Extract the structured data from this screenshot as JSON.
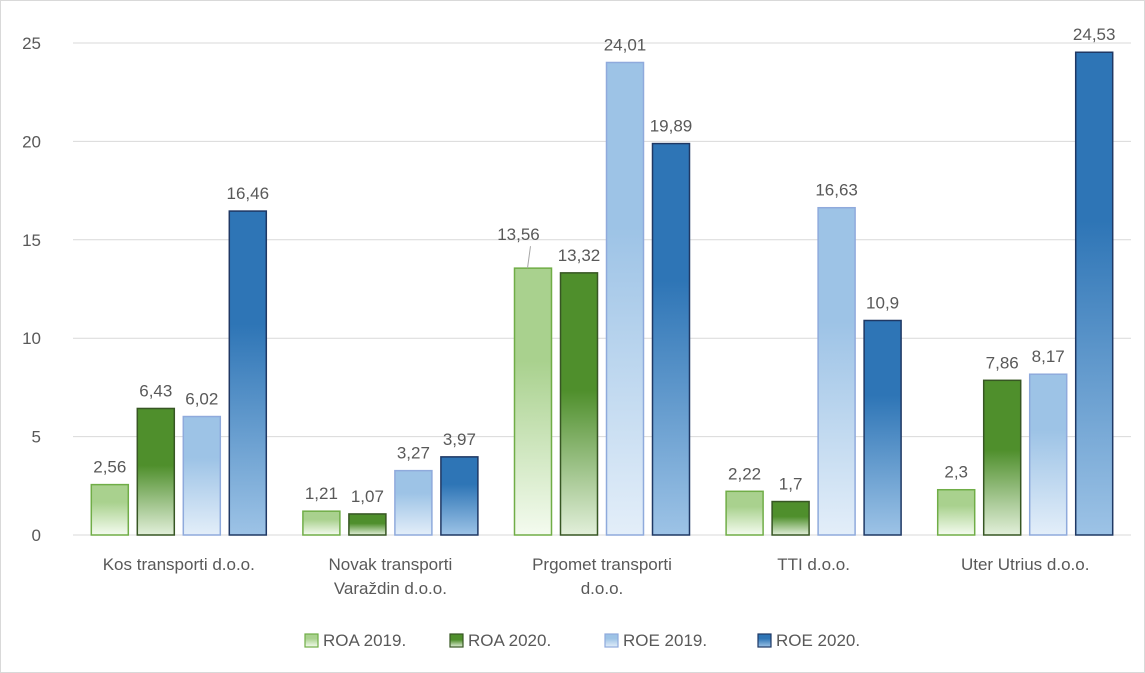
{
  "chart_data": {
    "type": "bar",
    "categories": [
      [
        "Kos transporti d.o.o."
      ],
      [
        "Novak transporti",
        "Varaždin d.o.o."
      ],
      [
        "Prgomet transporti",
        "d.o.o."
      ],
      [
        "TTI d.o.o."
      ],
      [
        "Uter Utrius d.o.o."
      ]
    ],
    "series": [
      {
        "name": "ROA 2019.",
        "values": [
          2.56,
          1.21,
          13.56,
          2.22,
          2.3
        ],
        "labels": [
          "2,56",
          "1,21",
          "13,56",
          "2,22",
          "2,3"
        ],
        "color_top": "#a9d18e",
        "color_bottom": "#f4fbef",
        "border": "#70ad47"
      },
      {
        "name": "ROA 2020.",
        "values": [
          6.43,
          1.07,
          13.32,
          1.7,
          7.86
        ],
        "labels": [
          "6,43",
          "1,07",
          "13,32",
          "1,7",
          "7,86"
        ],
        "color_top": "#4f8f2c",
        "color_bottom": "#e2efda",
        "border": "#375623"
      },
      {
        "name": "ROE 2019.",
        "values": [
          6.02,
          3.27,
          24.01,
          16.63,
          8.17
        ],
        "labels": [
          "6,02",
          "3,27",
          "24,01",
          "16,63",
          "8,17"
        ],
        "color_top": "#9dc3e6",
        "color_bottom": "#e3eef9",
        "border": "#8faadc"
      },
      {
        "name": "ROE 2020.",
        "values": [
          16.46,
          3.97,
          19.89,
          10.9,
          24.53
        ],
        "labels": [
          "16,46",
          "3,97",
          "19,89",
          "10,9",
          "24,53"
        ],
        "color_top": "#2e75b6",
        "color_bottom": "#9dc3e6",
        "border": "#1f3864"
      }
    ],
    "y_ticks": [
      "0",
      "5",
      "10",
      "15",
      "20",
      "25"
    ],
    "ylim": [
      0,
      25
    ],
    "grid": true,
    "legend": "bottom",
    "title": "",
    "xlabel": "",
    "ylabel": ""
  }
}
